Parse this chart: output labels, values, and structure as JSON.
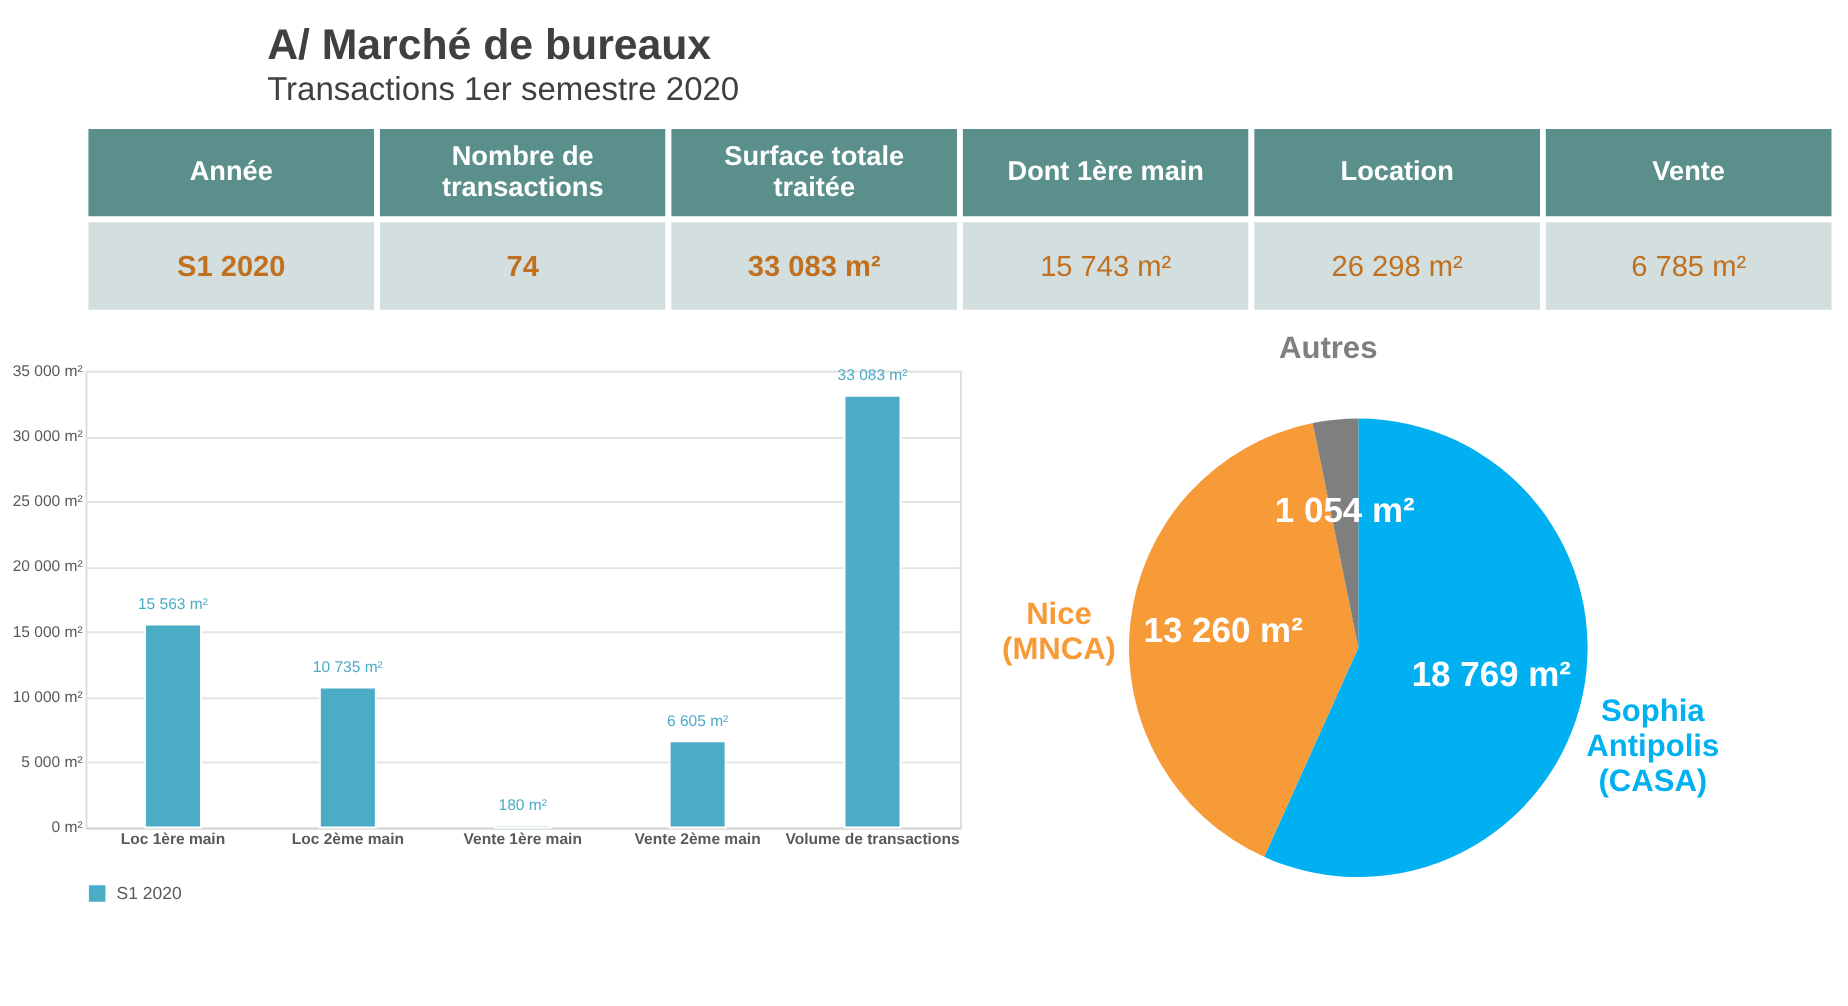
{
  "chart_data": [
    {
      "type": "other",
      "title": "A/ Marché de bureaux",
      "subtitle": "Transactions 1er semestre 2020",
      "categories": [
        "Année",
        "Nombre de transactions",
        "Surface totale traitée",
        "Dont 1ère main",
        "Location",
        "Vente"
      ],
      "value_labels": [
        "S1 2020",
        "74",
        "33 083 m²",
        "15 743 m²",
        "26 298 m²",
        "6 785 m²"
      ]
    },
    {
      "type": "bar",
      "categories": [
        "Loc 1ère main",
        "Loc 2ème main",
        "Vente 1ère main",
        "Vente 2ème main",
        "Volume de transactions"
      ],
      "series": [
        {
          "name": "S1 2020",
          "color": "#4bacc6",
          "values": [
            15563,
            10735,
            180,
            6605,
            33083
          ],
          "value_labels": [
            "15 563 m²",
            "10 735 m²",
            "180 m²",
            "6 605 m²",
            "33 083 m²"
          ]
        }
      ],
      "ylim": [
        0,
        35000
      ],
      "yticks": [
        {
          "value": 0,
          "label": "0 m²"
        },
        {
          "value": 5000,
          "label": "5 000 m²"
        },
        {
          "value": 10000,
          "label": "10 000 m²"
        },
        {
          "value": 15000,
          "label": "15 000 m²"
        },
        {
          "value": 20000,
          "label": "20 000 m²"
        },
        {
          "value": 25000,
          "label": "25 000 m²"
        },
        {
          "value": 30000,
          "label": "30 000 m²"
        },
        {
          "value": 35000,
          "label": "35 000 m²"
        }
      ],
      "grid": "y",
      "legend": "bottom"
    },
    {
      "type": "pie",
      "categories": [
        "Sophia Antipolis (CASA)",
        "Nice (MNCA)",
        "Autres"
      ],
      "values": [
        18769,
        13260,
        1054
      ],
      "colors": [
        "#00b0f0",
        "#f79a38",
        "#7f7f7f"
      ],
      "value_labels": [
        "18 769 m²",
        "13 260 m²",
        "1 054 m²"
      ]
    }
  ]
}
